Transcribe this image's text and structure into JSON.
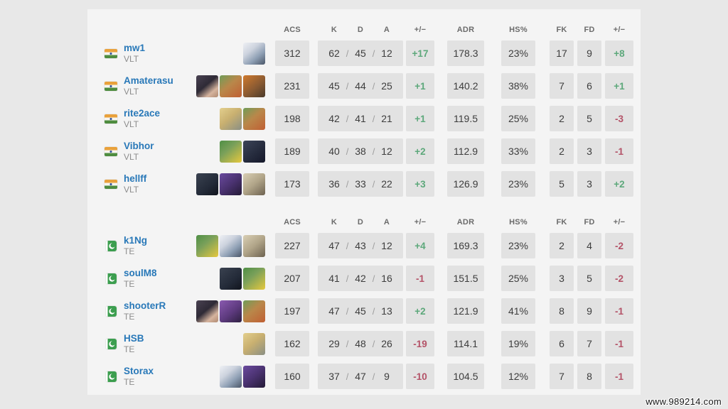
{
  "columns": {
    "acs": "ACS",
    "k": "K",
    "d": "D",
    "a": "A",
    "pm": "+/−",
    "adr": "ADR",
    "hs": "HS%",
    "fk": "FK",
    "fd": "FD",
    "pm2": "+/−"
  },
  "colors": {
    "accent_link": "#2878b8",
    "positive": "#5da87b",
    "negative": "#b45368",
    "cell_bg": "#e2e2e2",
    "card_bg": "#f4f4f4",
    "page_bg": "#e8e8e8"
  },
  "teams": [
    {
      "tag": "VLT",
      "flag": "india",
      "players": [
        {
          "name": "mw1",
          "team": "VLT",
          "flag": "in",
          "agents": [
            "jett"
          ],
          "acs": "312",
          "k": "62",
          "d": "45",
          "a": "12",
          "pm": "+17",
          "adr": "178.3",
          "hs": "23%",
          "fk": "17",
          "fd": "9",
          "pm2": "+8"
        },
        {
          "name": "Amaterasu",
          "team": "VLT",
          "flag": "in",
          "agents": [
            "fade",
            "skye",
            "harbor"
          ],
          "acs": "231",
          "k": "45",
          "d": "44",
          "a": "25",
          "pm": "+1",
          "adr": "140.2",
          "hs": "38%",
          "fk": "7",
          "fd": "6",
          "pm2": "+1"
        },
        {
          "name": "rite2ace",
          "team": "VLT",
          "flag": "in",
          "agents": [
            "sova",
            "skye"
          ],
          "acs": "198",
          "k": "42",
          "d": "41",
          "a": "21",
          "pm": "+1",
          "adr": "119.5",
          "hs": "25%",
          "fk": "2",
          "fd": "5",
          "pm2": "-3"
        },
        {
          "name": "Vibhor",
          "team": "VLT",
          "flag": "in",
          "agents": [
            "killjoy",
            "omen"
          ],
          "acs": "189",
          "k": "40",
          "d": "38",
          "a": "12",
          "pm": "+2",
          "adr": "112.9",
          "hs": "33%",
          "fk": "2",
          "fd": "3",
          "pm2": "-1"
        },
        {
          "name": "hellff",
          "team": "VLT",
          "flag": "in",
          "agents": [
            "viper",
            "astra",
            "cypher"
          ],
          "acs": "173",
          "k": "36",
          "d": "33",
          "a": "22",
          "pm": "+3",
          "adr": "126.9",
          "hs": "23%",
          "fk": "5",
          "fd": "3",
          "pm2": "+2"
        }
      ]
    },
    {
      "tag": "TE",
      "flag": "pakistan",
      "players": [
        {
          "name": "k1Ng",
          "team": "TE",
          "flag": "pk",
          "agents": [
            "killjoy",
            "jett",
            "cypher"
          ],
          "acs": "227",
          "k": "47",
          "d": "43",
          "a": "12",
          "pm": "+4",
          "adr": "169.3",
          "hs": "23%",
          "fk": "2",
          "fd": "4",
          "pm2": "-2"
        },
        {
          "name": "soulM8",
          "team": "TE",
          "flag": "pk",
          "agents": [
            "viper",
            "killjoy"
          ],
          "acs": "207",
          "k": "41",
          "d": "42",
          "a": "16",
          "pm": "-1",
          "adr": "151.5",
          "hs": "25%",
          "fk": "3",
          "fd": "5",
          "pm2": "-2"
        },
        {
          "name": "shooterR",
          "team": "TE",
          "flag": "pk",
          "agents": [
            "fade",
            "reyna",
            "skye"
          ],
          "acs": "197",
          "k": "47",
          "d": "45",
          "a": "13",
          "pm": "+2",
          "adr": "121.9",
          "hs": "41%",
          "fk": "8",
          "fd": "9",
          "pm2": "-1"
        },
        {
          "name": "HSB",
          "team": "TE",
          "flag": "pk",
          "agents": [
            "sova"
          ],
          "acs": "162",
          "k": "29",
          "d": "48",
          "a": "26",
          "pm": "-19",
          "adr": "114.1",
          "hs": "19%",
          "fk": "6",
          "fd": "7",
          "pm2": "-1"
        },
        {
          "name": "Storax",
          "team": "TE",
          "flag": "pk",
          "agents": [
            "jett",
            "astra"
          ],
          "acs": "160",
          "k": "37",
          "d": "47",
          "a": "9",
          "pm": "-10",
          "adr": "104.5",
          "hs": "12%",
          "fk": "7",
          "fd": "8",
          "pm2": "-1"
        }
      ]
    }
  ],
  "watermark": "www.989214.com"
}
